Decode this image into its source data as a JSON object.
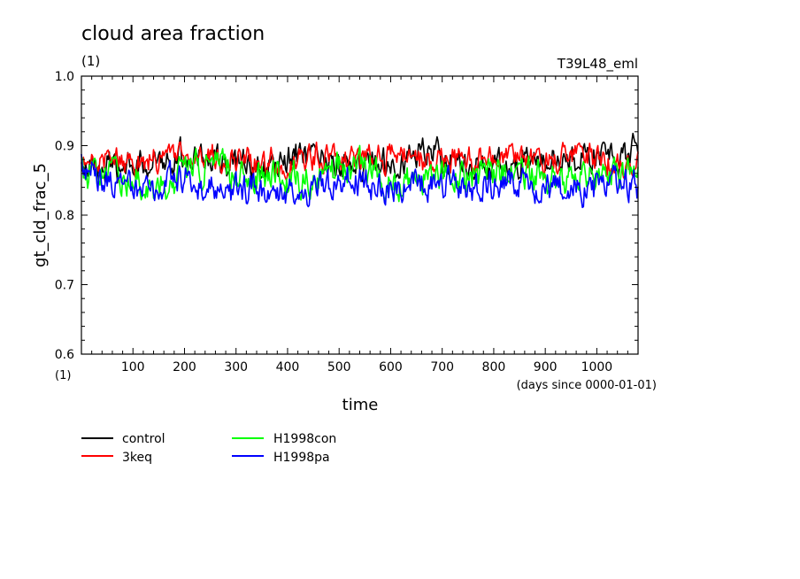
{
  "header": {
    "title": "cloud area fraction",
    "units": "(1)",
    "experiment": "T39L48_eml"
  },
  "chart_data": {
    "type": "line",
    "title": "cloud area fraction",
    "xlabel": "time",
    "xunits": "(days since 0000-01-01)",
    "ylabel": "gt_cld_frac_5",
    "yunits": "(1)",
    "xlim": [
      0,
      1080
    ],
    "ylim": [
      0.6,
      1.0
    ],
    "xticks": [
      100,
      200,
      300,
      400,
      500,
      600,
      700,
      800,
      900,
      1000
    ],
    "xtick_labels": [
      "100",
      "200",
      "300",
      "400",
      "500",
      "600",
      "700",
      "800",
      "900",
      "1000"
    ],
    "yticks": [
      0.6,
      0.7,
      0.8,
      0.9,
      1.0
    ],
    "ytick_labels": [
      "0.6",
      "0.7",
      "0.8",
      "0.9",
      "1.0"
    ],
    "grid": false,
    "legend_position": "bottom-left",
    "series": [
      {
        "name": "control",
        "color": "#000000",
        "mean": 0.872,
        "amp": 0.018,
        "anchors": [
          [
            0,
            0.865
          ],
          [
            100,
            0.865
          ],
          [
            150,
            0.885
          ],
          [
            250,
            0.885
          ],
          [
            300,
            0.87
          ],
          [
            360,
            0.865
          ],
          [
            420,
            0.885
          ],
          [
            480,
            0.87
          ],
          [
            560,
            0.875
          ],
          [
            620,
            0.88
          ],
          [
            680,
            0.895
          ],
          [
            740,
            0.87
          ],
          [
            800,
            0.87
          ],
          [
            900,
            0.88
          ],
          [
            960,
            0.875
          ],
          [
            1000,
            0.885
          ],
          [
            1060,
            0.88
          ],
          [
            1080,
            0.905
          ]
        ]
      },
      {
        "name": "3keq",
        "color": "#ff0000",
        "mean": 0.877,
        "amp": 0.016,
        "anchors": [
          [
            0,
            0.865
          ],
          [
            40,
            0.885
          ],
          [
            100,
            0.875
          ],
          [
            200,
            0.885
          ],
          [
            260,
            0.885
          ],
          [
            330,
            0.875
          ],
          [
            400,
            0.88
          ],
          [
            460,
            0.885
          ],
          [
            520,
            0.88
          ],
          [
            600,
            0.885
          ],
          [
            700,
            0.875
          ],
          [
            760,
            0.88
          ],
          [
            820,
            0.88
          ],
          [
            880,
            0.875
          ],
          [
            960,
            0.885
          ],
          [
            1080,
            0.87
          ]
        ]
      },
      {
        "name": "H1998con",
        "color": "#00ff00",
        "mean": 0.86,
        "amp": 0.02,
        "anchors": [
          [
            0,
            0.858
          ],
          [
            100,
            0.855
          ],
          [
            140,
            0.84
          ],
          [
            200,
            0.86
          ],
          [
            260,
            0.87
          ],
          [
            340,
            0.86
          ],
          [
            420,
            0.85
          ],
          [
            500,
            0.865
          ],
          [
            560,
            0.87
          ],
          [
            620,
            0.845
          ],
          [
            700,
            0.858
          ],
          [
            780,
            0.86
          ],
          [
            860,
            0.855
          ],
          [
            920,
            0.85
          ],
          [
            1000,
            0.86
          ],
          [
            1080,
            0.855
          ]
        ]
      },
      {
        "name": "H1998pa",
        "color": "#0000ff",
        "mean": 0.845,
        "amp": 0.018,
        "anchors": [
          [
            0,
            0.87
          ],
          [
            60,
            0.845
          ],
          [
            120,
            0.835
          ],
          [
            200,
            0.855
          ],
          [
            270,
            0.83
          ],
          [
            360,
            0.84
          ],
          [
            440,
            0.835
          ],
          [
            520,
            0.85
          ],
          [
            600,
            0.84
          ],
          [
            680,
            0.845
          ],
          [
            760,
            0.84
          ],
          [
            840,
            0.845
          ],
          [
            920,
            0.84
          ],
          [
            980,
            0.835
          ],
          [
            1040,
            0.845
          ],
          [
            1080,
            0.84
          ]
        ]
      }
    ]
  },
  "legend": [
    {
      "label": "control",
      "color": "#000000"
    },
    {
      "label": "3keq",
      "color": "#ff0000"
    },
    {
      "label": "H1998con",
      "color": "#00ff00"
    },
    {
      "label": "H1998pa",
      "color": "#0000ff"
    }
  ]
}
